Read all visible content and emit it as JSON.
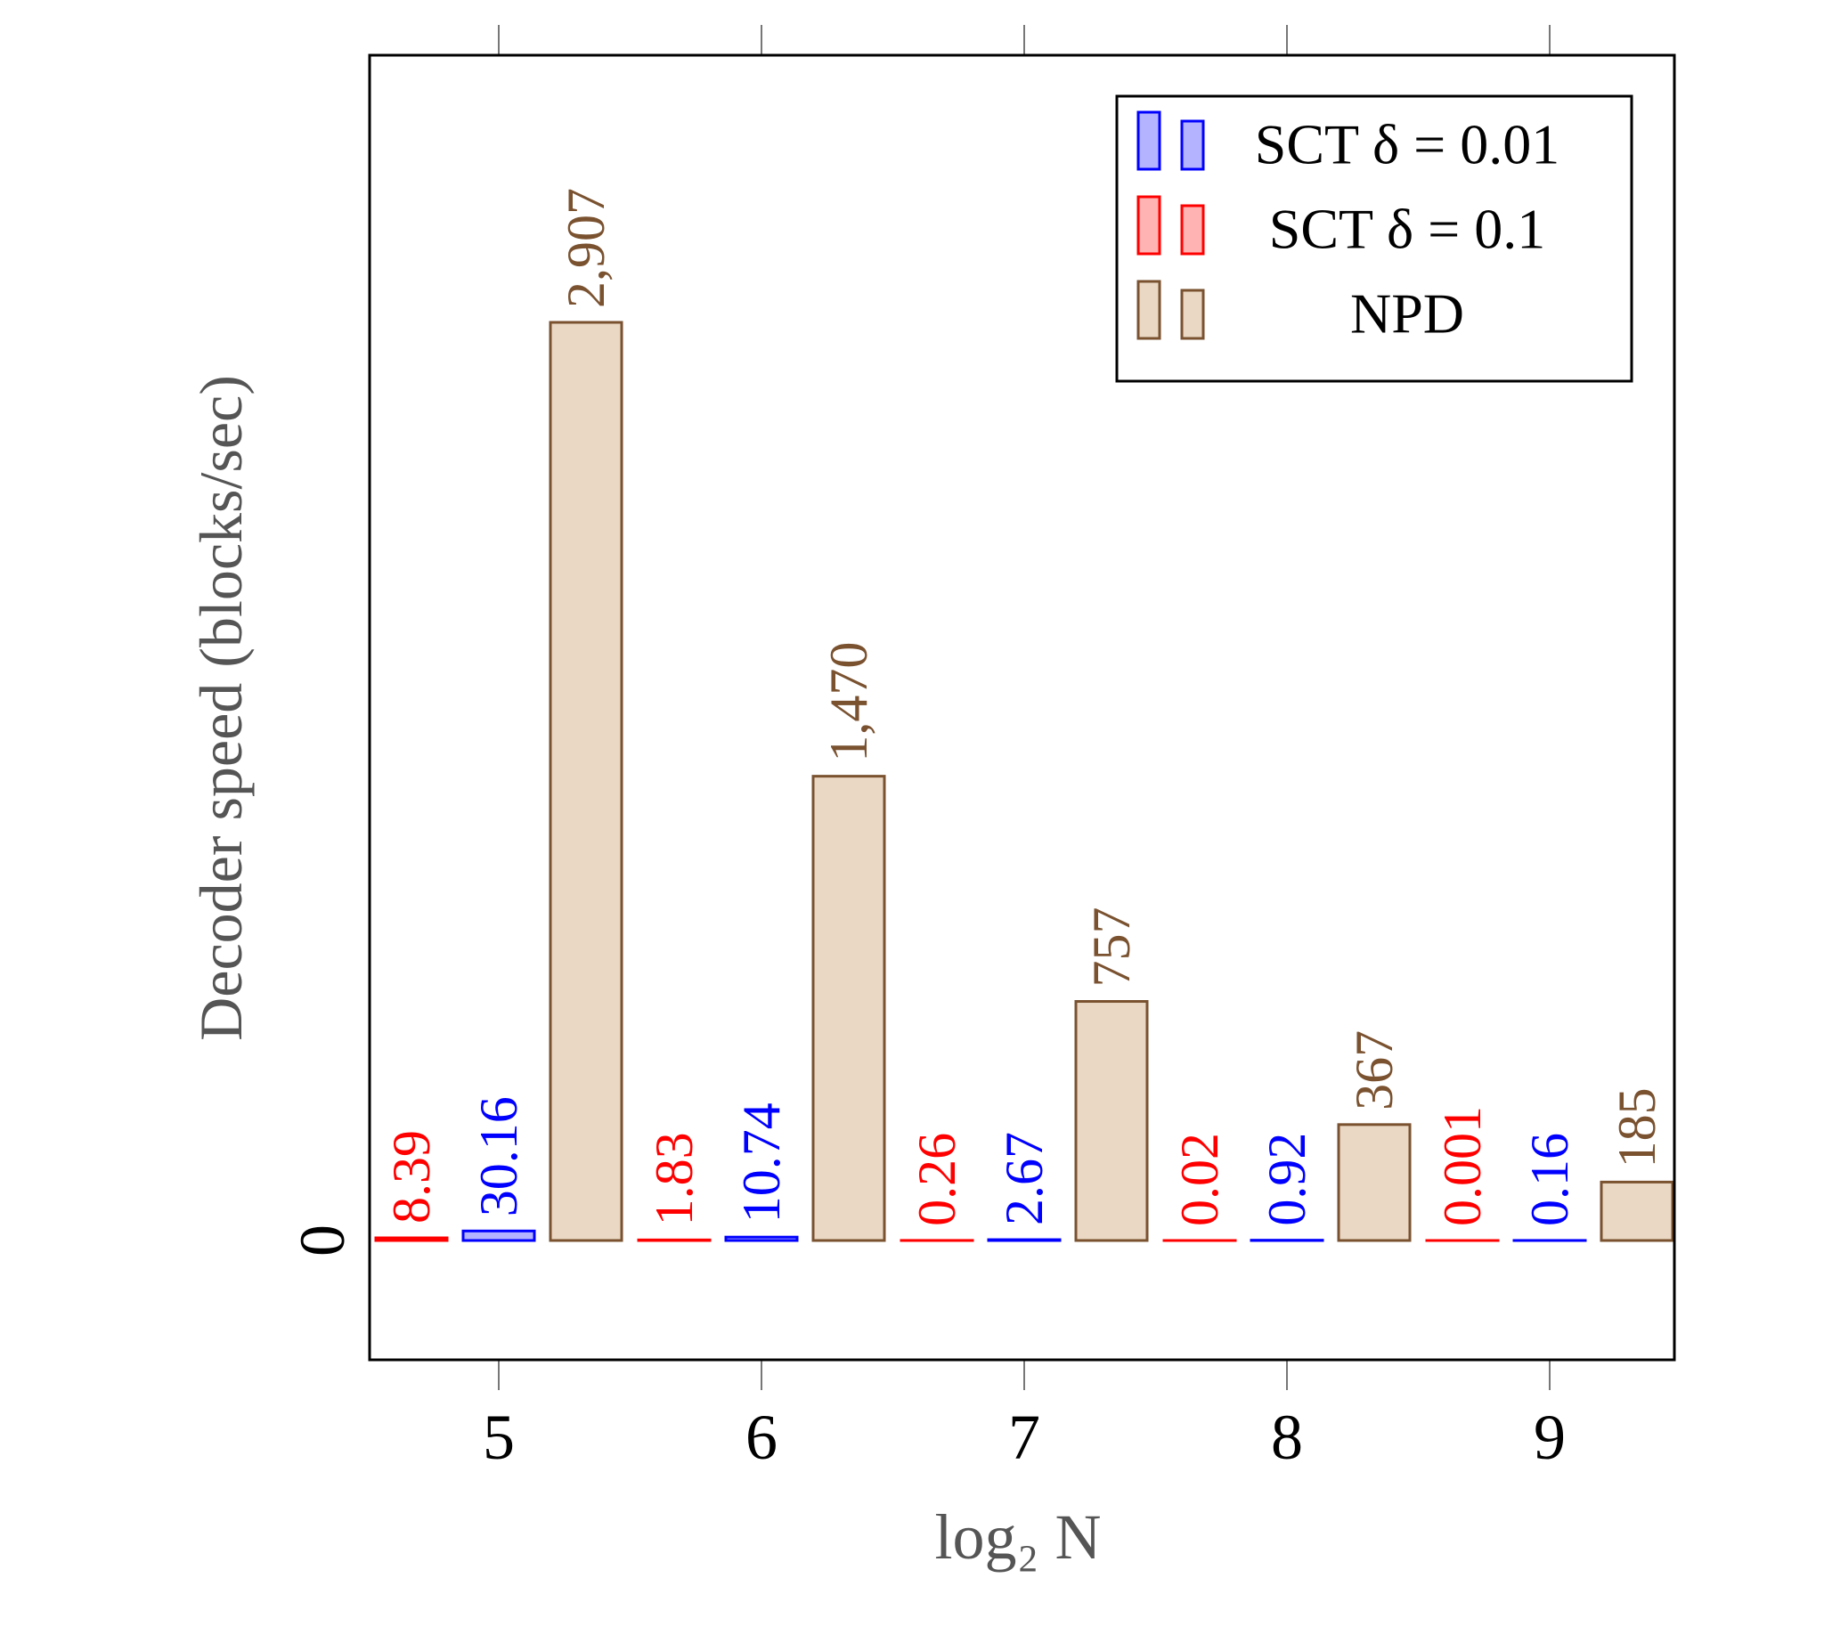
{
  "chart_data": {
    "type": "bar",
    "title": "",
    "xlabel": "log₂ N",
    "ylabel": "Decoder speed (blocks/sec)",
    "categories": [
      "5",
      "6",
      "7",
      "8",
      "9"
    ],
    "x": [
      5,
      6,
      7,
      8,
      9
    ],
    "ylim": [
      -420,
      4550
    ],
    "yticks": [
      0
    ],
    "ytick_labels": [
      "0"
    ],
    "grid": false,
    "legend_position": "top-right",
    "series": [
      {
        "name": "SCT δ = 0.1",
        "values": [
          8.39,
          1.83,
          0.26,
          0.02,
          0.001
        ],
        "value_labels": [
          "8.39",
          "1.83",
          "0.26",
          "0.02",
          "0.001"
        ],
        "stroke": "#ff0000",
        "fill": "#ffb3b3",
        "label_color": "#ff0000"
      },
      {
        "name": "SCT δ = 0.01",
        "values": [
          30.16,
          10.74,
          2.67,
          0.92,
          0.16
        ],
        "value_labels": [
          "30.16",
          "10.74",
          "2.67",
          "0.92",
          "0.16"
        ],
        "stroke": "#0000ff",
        "fill": "#b3b3ff",
        "label_color": "#0000ff"
      },
      {
        "name": "NPD",
        "values": [
          2907,
          1470,
          757,
          367,
          185
        ],
        "value_labels": [
          "2,907",
          "1,470",
          "757",
          "367",
          "185"
        ],
        "stroke": "#7a5230",
        "fill": "#ead8c4",
        "label_color": "#7a5230"
      }
    ],
    "legend_entries": [
      {
        "label_text": "SCT",
        "label_math": "δ = 0.01",
        "series_index": 1
      },
      {
        "label_text": "SCT",
        "label_math": "δ = 0.1",
        "series_index": 0
      },
      {
        "label_text": "NPD",
        "label_math": "",
        "series_index": 2
      }
    ],
    "colors": {
      "axis": "#000000",
      "axis_label": "#555555",
      "tick_mark": "#777777"
    }
  }
}
